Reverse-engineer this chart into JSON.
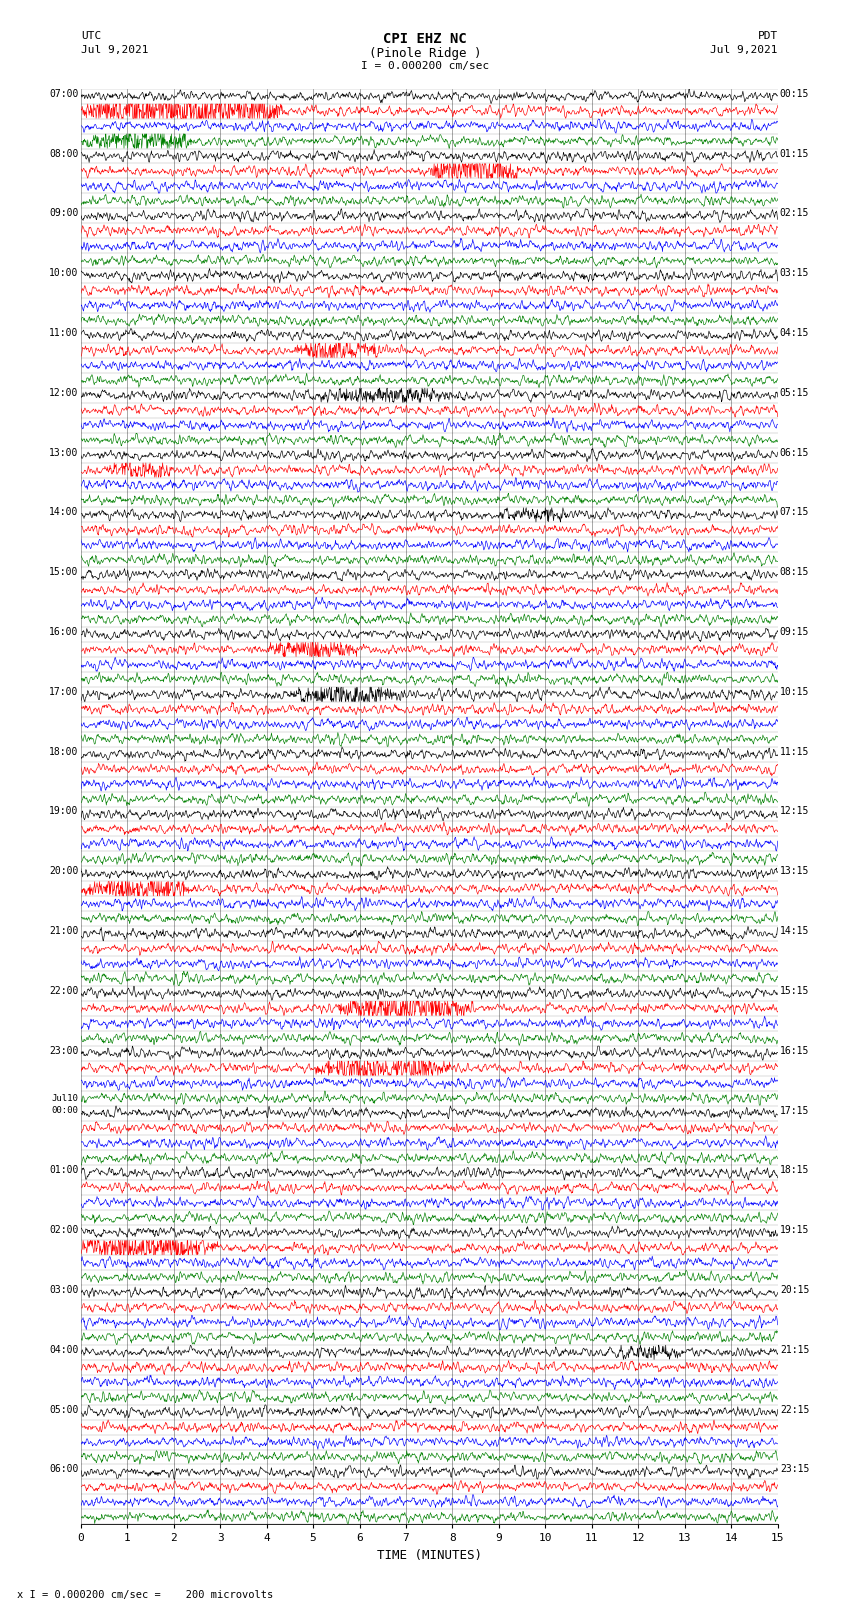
{
  "title_line1": "CPI EHZ NC",
  "title_line2": "(Pinole Ridge )",
  "scale_label": "I = 0.000200 cm/sec",
  "bottom_label": "x I = 0.000200 cm/sec =    200 microvolts",
  "xlabel": "TIME (MINUTES)",
  "utc_label": "UTC",
  "utc_date": "Jul 9,2021",
  "pdt_label": "PDT",
  "pdt_date": "Jul 9,2021",
  "xmin": 0,
  "xmax": 15,
  "xticks": [
    0,
    1,
    2,
    3,
    4,
    5,
    6,
    7,
    8,
    9,
    10,
    11,
    12,
    13,
    14,
    15
  ],
  "figsize": [
    8.5,
    16.13
  ],
  "dpi": 100,
  "bg_color": "#ffffff",
  "trace_colors": [
    "black",
    "red",
    "blue",
    "green"
  ],
  "num_traces": 96,
  "traces_per_hour": 4,
  "left_labels_utc": [
    "07:00",
    "08:00",
    "09:00",
    "10:00",
    "11:00",
    "12:00",
    "13:00",
    "14:00",
    "15:00",
    "16:00",
    "17:00",
    "18:00",
    "19:00",
    "20:00",
    "21:00",
    "22:00",
    "23:00",
    "Jul10|00:00",
    "01:00",
    "02:00",
    "03:00",
    "04:00",
    "05:00",
    "06:00"
  ],
  "right_labels_pdt": [
    "00:15",
    "01:15",
    "02:15",
    "03:15",
    "04:15",
    "05:15",
    "06:15",
    "07:15",
    "08:15",
    "09:15",
    "10:15",
    "11:15",
    "12:15",
    "13:15",
    "14:15",
    "15:15",
    "16:15",
    "17:15",
    "18:15",
    "19:15",
    "20:15",
    "21:15",
    "22:15",
    "23:15"
  ],
  "noise_amplitude": 0.3,
  "special_events": [
    {
      "trace": 1,
      "xstart": 0.0,
      "xend": 4.5,
      "amp": 2.5,
      "color": "red"
    },
    {
      "trace": 3,
      "xstart": 0.0,
      "xend": 2.5,
      "amp": 1.5,
      "color": "green"
    },
    {
      "trace": 5,
      "xstart": 7.5,
      "xend": 9.5,
      "amp": 2.0,
      "color": "blue"
    },
    {
      "trace": 17,
      "xstart": 4.5,
      "xend": 6.5,
      "amp": 1.2,
      "color": "green"
    },
    {
      "trace": 20,
      "xstart": 5.0,
      "xend": 8.0,
      "amp": 0.9,
      "color": "blue"
    },
    {
      "trace": 25,
      "xstart": 0.5,
      "xend": 2.0,
      "amp": 1.0,
      "color": "black"
    },
    {
      "trace": 28,
      "xstart": 9.0,
      "xend": 10.5,
      "amp": 0.8,
      "color": "blue"
    },
    {
      "trace": 37,
      "xstart": 4.0,
      "xend": 6.0,
      "amp": 1.1,
      "color": "red"
    },
    {
      "trace": 40,
      "xstart": 4.5,
      "xend": 7.0,
      "amp": 1.2,
      "color": "green"
    },
    {
      "trace": 53,
      "xstart": 0.0,
      "xend": 2.5,
      "amp": 1.5,
      "color": "black"
    },
    {
      "trace": 61,
      "xstart": 5.5,
      "xend": 8.5,
      "amp": 2.0,
      "color": "red"
    },
    {
      "trace": 65,
      "xstart": 5.0,
      "xend": 8.0,
      "amp": 1.5,
      "color": "green"
    },
    {
      "trace": 77,
      "xstart": 0.0,
      "xend": 3.0,
      "amp": 1.8,
      "color": "green"
    },
    {
      "trace": 84,
      "xstart": 11.5,
      "xend": 13.0,
      "amp": 0.8,
      "color": "green"
    }
  ]
}
